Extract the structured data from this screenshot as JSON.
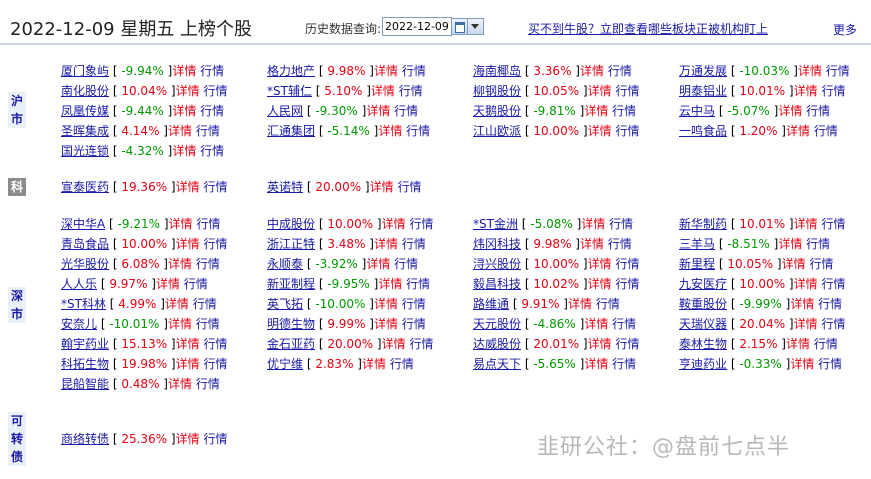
{
  "header": {
    "title": "2022-12-09 星期五 上榜个股",
    "query_label": "历史数据查询:",
    "date_value": "2022-12-09",
    "promo_link": "买不到牛股？立即查看哪些板块正被机构盯上",
    "more_link": "更多"
  },
  "labels": {
    "detail": "详情",
    "quote": "行情",
    "bracket_open": "[",
    "bracket_close": "]"
  },
  "markets": {
    "sh": "沪市",
    "kc": "科",
    "sz": "深市",
    "kz": "可转债"
  },
  "sections": {
    "sh": [
      {
        "name": "厦门象屿",
        "pct": "-9.94%"
      },
      {
        "name": "格力地产",
        "pct": "9.98%"
      },
      {
        "name": "海南椰岛",
        "pct": "3.36%"
      },
      {
        "name": "万通发展",
        "pct": "-10.03%"
      },
      {
        "name": "南化股份",
        "pct": "10.04%"
      },
      {
        "name": "*ST辅仁",
        "pct": "5.10%"
      },
      {
        "name": "柳钢股份",
        "pct": "10.05%"
      },
      {
        "name": "明泰铝业",
        "pct": "10.01%"
      },
      {
        "name": "凤凰传媒",
        "pct": "-9.44%"
      },
      {
        "name": "人民网",
        "pct": "-9.30%"
      },
      {
        "name": "天鹅股份",
        "pct": "-9.81%"
      },
      {
        "name": "云中马",
        "pct": "-5.07%"
      },
      {
        "name": "圣晖集成",
        "pct": "4.14%"
      },
      {
        "name": "汇通集团",
        "pct": "-5.14%"
      },
      {
        "name": "江山欧派",
        "pct": "10.00%"
      },
      {
        "name": "一鸣食品",
        "pct": "1.20%"
      },
      {
        "name": "国光连锁",
        "pct": "-4.32%"
      }
    ],
    "kc": [
      {
        "name": "宣泰医药",
        "pct": "19.36%"
      },
      {
        "name": "英诺特",
        "pct": "20.00%"
      }
    ],
    "sz": [
      {
        "name": "深中华A",
        "pct": "-9.21%"
      },
      {
        "name": "中成股份",
        "pct": "10.00%"
      },
      {
        "name": "*ST金洲",
        "pct": "-5.08%"
      },
      {
        "name": "新华制药",
        "pct": "10.01%"
      },
      {
        "name": "青岛食品",
        "pct": "10.00%"
      },
      {
        "name": "浙江正特",
        "pct": "3.48%"
      },
      {
        "name": "炜冈科技",
        "pct": "9.98%"
      },
      {
        "name": "三羊马",
        "pct": "-8.51%"
      },
      {
        "name": "光华股份",
        "pct": "6.08%"
      },
      {
        "name": "永顺泰",
        "pct": "-3.92%"
      },
      {
        "name": "浔兴股份",
        "pct": "10.00%"
      },
      {
        "name": "新里程",
        "pct": "10.05%"
      },
      {
        "name": "人人乐",
        "pct": "9.97%"
      },
      {
        "name": "新亚制程",
        "pct": "-9.95%"
      },
      {
        "name": "毅昌科技",
        "pct": "10.02%"
      },
      {
        "name": "九安医疗",
        "pct": "10.00%"
      },
      {
        "name": "*ST科林",
        "pct": "4.99%"
      },
      {
        "name": "英飞拓",
        "pct": "-10.00%"
      },
      {
        "name": "路维通",
        "pct": "9.91%"
      },
      {
        "name": "鞍重股份",
        "pct": "-9.99%"
      },
      {
        "name": "安奈儿",
        "pct": "-10.01%"
      },
      {
        "name": "明德生物",
        "pct": "9.99%"
      },
      {
        "name": "天元股份",
        "pct": "-4.86%"
      },
      {
        "name": "天瑞仪器",
        "pct": "20.04%"
      },
      {
        "name": "翰宇药业",
        "pct": "15.13%"
      },
      {
        "name": "金石亚药",
        "pct": "20.00%"
      },
      {
        "name": "达威股份",
        "pct": "20.01%"
      },
      {
        "name": "泰林生物",
        "pct": "2.15%"
      },
      {
        "name": "科拓生物",
        "pct": "19.98%"
      },
      {
        "name": "优宁维",
        "pct": "2.83%"
      },
      {
        "name": "易点天下",
        "pct": "-5.65%"
      },
      {
        "name": "亨迪药业",
        "pct": "-0.33%"
      },
      {
        "name": "昆船智能",
        "pct": "0.48%"
      }
    ],
    "kz": [
      {
        "name": "商络转债",
        "pct": "25.36%"
      }
    ]
  },
  "watermark": "韭研公社：@盘前七点半",
  "colors": {
    "up": "#e60012",
    "down": "#009900",
    "link": "#1a1aa6"
  }
}
